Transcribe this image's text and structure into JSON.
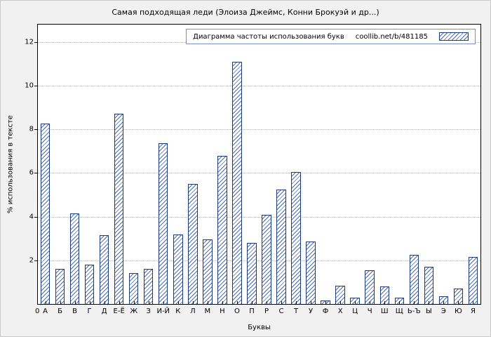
{
  "title": "Самая подходящая леди (Элоиза Джеймс, Конни Брокуэй и др...)",
  "legend": {
    "label": "Диаграмма частоты использования букв",
    "link": "coollib.net/b/481185"
  },
  "axes": {
    "y_label": "% использования в тексте",
    "x_label": "Буквы",
    "origin_label": "0",
    "y_ticks": [
      2,
      4,
      6,
      8,
      10,
      12
    ]
  },
  "colors": {
    "bar_outline": "#1c3a75",
    "bar_hatch": "#4a6db5",
    "figure_background": "#f1f1f1",
    "plot_background": "#ffffff",
    "gridline": "#b4b4b4"
  },
  "chart_data": {
    "type": "bar",
    "title": "Самая подходящая леди (Элоиза Джеймс, Конни Брокуэй и др...)",
    "xlabel": "Буквы",
    "ylabel": "% использования в тексте",
    "ylim": [
      0,
      12.8
    ],
    "grid": true,
    "legend_position": "top-right",
    "categories": [
      "А",
      "Б",
      "В",
      "Г",
      "Д",
      "Е-Ё",
      "Ж",
      "З",
      "И-Й",
      "К",
      "Л",
      "М",
      "Н",
      "О",
      "П",
      "Р",
      "С",
      "Т",
      "У",
      "Ф",
      "Х",
      "Ц",
      "Ч",
      "Ш",
      "Щ",
      "Ь-Ъ",
      "Ы",
      "Э",
      "Ю",
      "Я"
    ],
    "values": [
      8.25,
      1.6,
      4.15,
      1.8,
      3.15,
      8.7,
      1.4,
      1.6,
      7.35,
      3.2,
      5.5,
      2.95,
      6.8,
      11.1,
      2.8,
      4.1,
      5.25,
      6.05,
      2.85,
      0.15,
      0.85,
      0.3,
      1.55,
      0.8,
      0.3,
      2.25,
      1.7,
      0.35,
      0.7,
      2.15
    ]
  }
}
